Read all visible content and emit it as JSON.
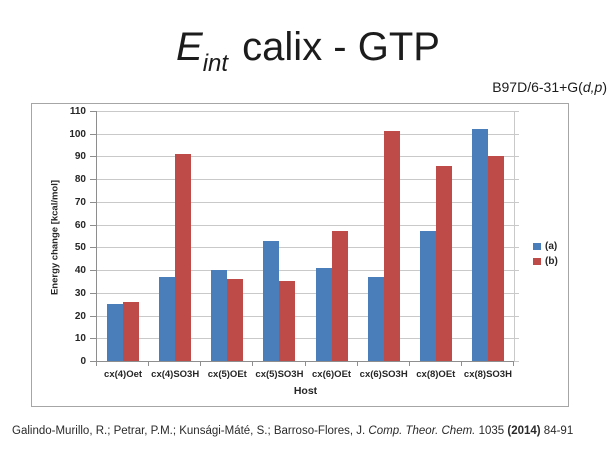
{
  "slide": {
    "title": {
      "e": "E",
      "sub": "int",
      "rest": " calix - GTP"
    },
    "method": {
      "prefix": "B97D/6-31+G(",
      "italic": "d,p",
      "suffix": ")"
    },
    "citation": {
      "segments": [
        {
          "text": "Galindo-Murillo, R.; Petrar, P.M.; Kunsági-Máté, S.; Barroso-Flores, J. ",
          "style": "normal"
        },
        {
          "text": "Comp. Theor. Chem.",
          "style": "italic"
        },
        {
          "text": " 1035 ",
          "style": "normal"
        },
        {
          "text": "(2014)",
          "style": "bold"
        },
        {
          "text": " 84-91",
          "style": "normal"
        }
      ]
    }
  },
  "chart_data": {
    "type": "bar",
    "categories": [
      "cx(4)Oet",
      "cx(4)SO3H",
      "cx(5)OEt",
      "cx(5)SO3H",
      "cx(6)OEt",
      "cx(6)SO3H",
      "cx(8)OEt",
      "cx(8)SO3H"
    ],
    "series": [
      {
        "name": "(a)",
        "color": "#4a7ebb",
        "values": [
          25,
          37,
          40,
          53,
          41,
          37,
          57,
          102
        ]
      },
      {
        "name": "(b)",
        "color": "#be4b48",
        "values": [
          26,
          91,
          36,
          35,
          57,
          101,
          86,
          90
        ]
      }
    ],
    "xlabel": "Host",
    "ylabel": "Energy change [kcal/mol]",
    "ylim": [
      0,
      110
    ],
    "ytick_step": 10,
    "grid": true,
    "legend_position": "right"
  }
}
